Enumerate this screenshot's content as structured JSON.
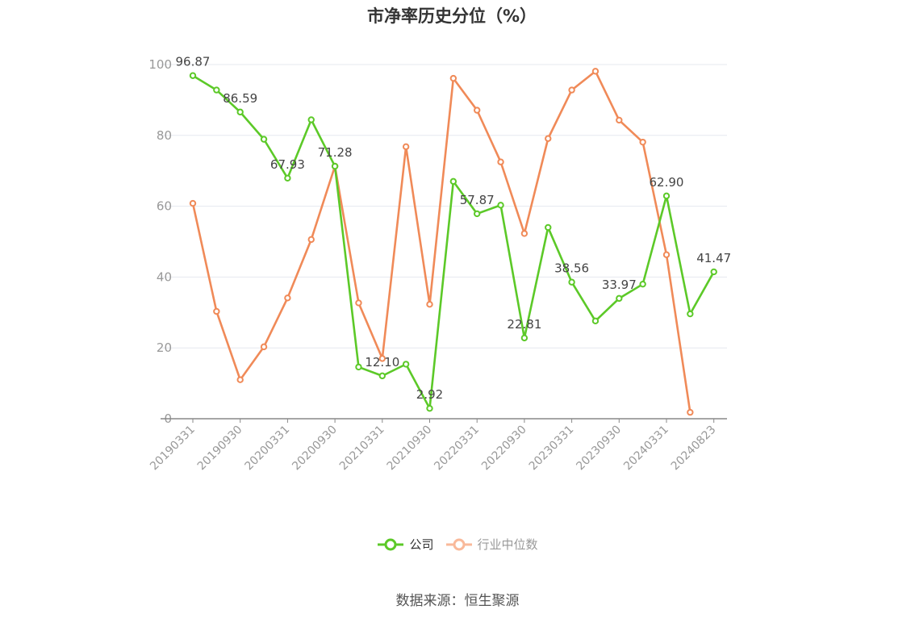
{
  "chart_data": {
    "type": "line",
    "title": "市净率历史分位（%）",
    "xlabel": "",
    "ylabel": "",
    "ylim": [
      0,
      100
    ],
    "yticks": [
      0,
      20,
      40,
      60,
      80,
      100
    ],
    "x": [
      "20190331",
      "20190630",
      "20190930",
      "20191231",
      "20200331",
      "20200630",
      "20200930",
      "20201231",
      "20210331",
      "20210630",
      "20210930",
      "20211231",
      "20220331",
      "20220630",
      "20220930",
      "20221231",
      "20230331",
      "20230630",
      "20230930",
      "20231231",
      "20240331",
      "20240630",
      "20240823"
    ],
    "xtick_labels": [
      "20190331",
      "20190930",
      "20200331",
      "20200930",
      "20210331",
      "20210930",
      "20220331",
      "20220930",
      "20230331",
      "20230930",
      "20240331",
      "20240823"
    ],
    "grid": true,
    "legend_position": "bottom",
    "series": [
      {
        "name": "公司",
        "color": "#5cc928",
        "values": [
          96.87,
          92.8,
          86.59,
          78.9,
          67.93,
          84.4,
          71.28,
          14.6,
          12.1,
          15.4,
          2.92,
          67.0,
          57.87,
          60.3,
          22.81,
          54.0,
          38.56,
          27.6,
          33.97,
          38.0,
          62.9,
          29.6,
          41.47
        ],
        "labels": [
          "96.87",
          null,
          "86.59",
          null,
          "67.93",
          null,
          "71.28",
          null,
          "12.10",
          null,
          "2.92",
          null,
          "57.87",
          null,
          "22.81",
          null,
          "38.56",
          null,
          "33.97",
          null,
          "62.90",
          null,
          "41.47"
        ]
      },
      {
        "name": "行业中位数",
        "color": "#f08a58",
        "values": [
          60.8,
          30.3,
          11.0,
          20.3,
          34.1,
          50.6,
          71.3,
          32.7,
          17.0,
          76.8,
          32.3,
          96.1,
          87.1,
          72.5,
          52.3,
          79.1,
          92.8,
          98.1,
          84.3,
          78.1,
          46.3,
          1.8,
          null
        ]
      }
    ]
  },
  "legend": {
    "items": [
      {
        "label": "公司",
        "color": "#5cc928"
      },
      {
        "label": "行业中位数",
        "color": "#f9b99a"
      }
    ]
  },
  "source_note": "数据来源：恒生聚源"
}
